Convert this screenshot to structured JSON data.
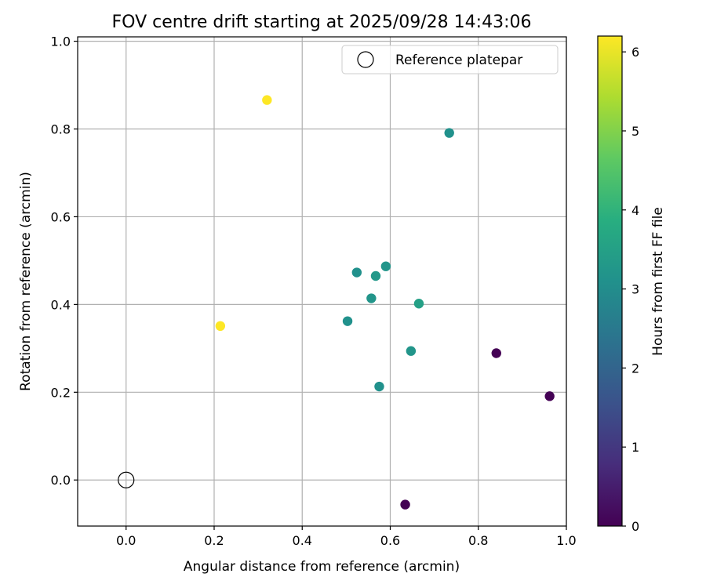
{
  "chart_data": {
    "type": "scatter",
    "title": "FOV centre drift starting at 2025/09/28 14:43:06",
    "xlabel": "Angular distance from reference (arcmin)",
    "ylabel": "Rotation from reference (arcmin)",
    "xlim": [
      -0.11,
      1.0
    ],
    "ylim": [
      -0.105,
      1.01
    ],
    "grid": true,
    "x_ticks": [
      0.0,
      0.2,
      0.4,
      0.6,
      0.8,
      1.0
    ],
    "x_tick_labels": [
      "0.0",
      "0.2",
      "0.4",
      "0.6",
      "0.8",
      "1.0"
    ],
    "y_ticks": [
      0.0,
      0.2,
      0.4,
      0.6,
      0.8,
      1.0
    ],
    "y_tick_labels": [
      "0.0",
      "0.2",
      "0.4",
      "0.6",
      "0.8",
      "1.0"
    ],
    "colorbar": {
      "label": "Hours from first FF file",
      "colormap": "viridis",
      "range": [
        0,
        6.2
      ],
      "ticks": [
        0,
        1,
        2,
        3,
        4,
        5,
        6
      ],
      "tick_labels": [
        "0",
        "1",
        "2",
        "3",
        "4",
        "5",
        "6"
      ]
    },
    "legend": {
      "position": "top-right",
      "entries": [
        {
          "label": "Reference platepar",
          "marker": "open-circle"
        }
      ]
    },
    "reference_point": {
      "x": 0.0,
      "y": 0.0,
      "label": "Reference platepar"
    },
    "series": [
      {
        "name": "FOV centre",
        "points": [
          {
            "x": 0.32,
            "y": 0.866,
            "hours": 6.2
          },
          {
            "x": 0.214,
            "y": 0.351,
            "hours": 6.2
          },
          {
            "x": 0.734,
            "y": 0.791,
            "hours": 3.1
          },
          {
            "x": 0.59,
            "y": 0.487,
            "hours": 3.2
          },
          {
            "x": 0.524,
            "y": 0.473,
            "hours": 3.1
          },
          {
            "x": 0.567,
            "y": 0.465,
            "hours": 3.3
          },
          {
            "x": 0.557,
            "y": 0.414,
            "hours": 3.2
          },
          {
            "x": 0.665,
            "y": 0.402,
            "hours": 3.5
          },
          {
            "x": 0.503,
            "y": 0.362,
            "hours": 3.1
          },
          {
            "x": 0.647,
            "y": 0.294,
            "hours": 3.2
          },
          {
            "x": 0.575,
            "y": 0.213,
            "hours": 3.1
          },
          {
            "x": 0.841,
            "y": 0.289,
            "hours": 0.0
          },
          {
            "x": 0.962,
            "y": 0.191,
            "hours": 0.0
          },
          {
            "x": 0.634,
            "y": -0.056,
            "hours": 0.0
          }
        ]
      }
    ]
  }
}
